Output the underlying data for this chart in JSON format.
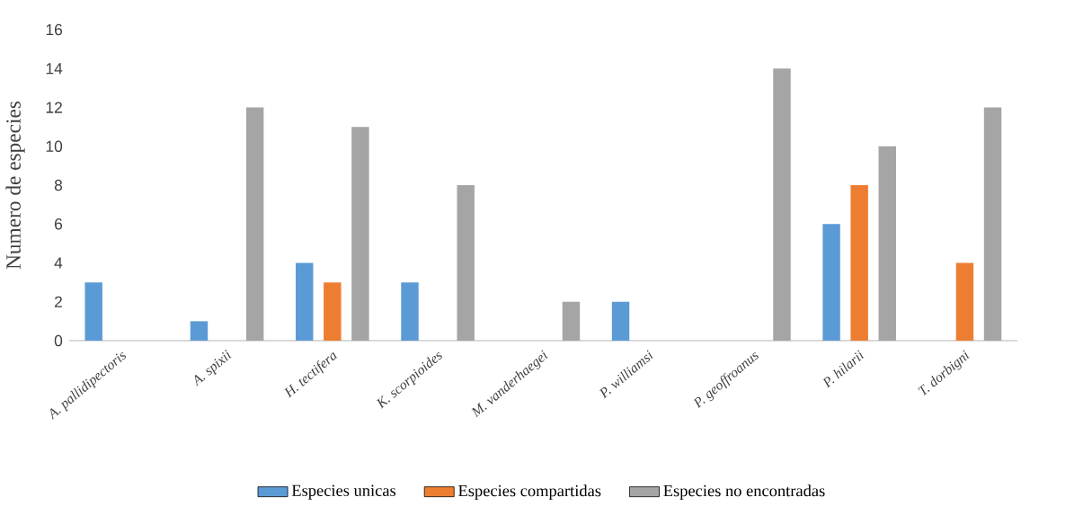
{
  "chart_data": {
    "type": "bar",
    "ylabel": "Numero de especies",
    "categories": [
      "A. pallidipectoris",
      "A. spixii",
      "H. tectifera",
      "K. scorpioides",
      "M. vanderhaegei",
      "P. williamsi",
      "P. geoffroanus",
      "P. hilarii",
      "T. dorbigni"
    ],
    "series": [
      {
        "name": "Especies unicas",
        "color": "#5b9bd5",
        "values": [
          3,
          1,
          4,
          3,
          0,
          2,
          0,
          6,
          0
        ]
      },
      {
        "name": "Especies compartidas",
        "color": "#ed7d31",
        "values": [
          0,
          0,
          3,
          0,
          0,
          0,
          0,
          8,
          4
        ]
      },
      {
        "name": "Especies no encontradas",
        "color": "#a5a5a5",
        "values": [
          0,
          12,
          11,
          8,
          2,
          0,
          14,
          10,
          12
        ]
      }
    ],
    "ylim": [
      0,
      16
    ],
    "yticks": [
      0,
      2,
      4,
      6,
      8,
      10,
      12,
      14,
      16
    ],
    "legend": "bottom"
  }
}
